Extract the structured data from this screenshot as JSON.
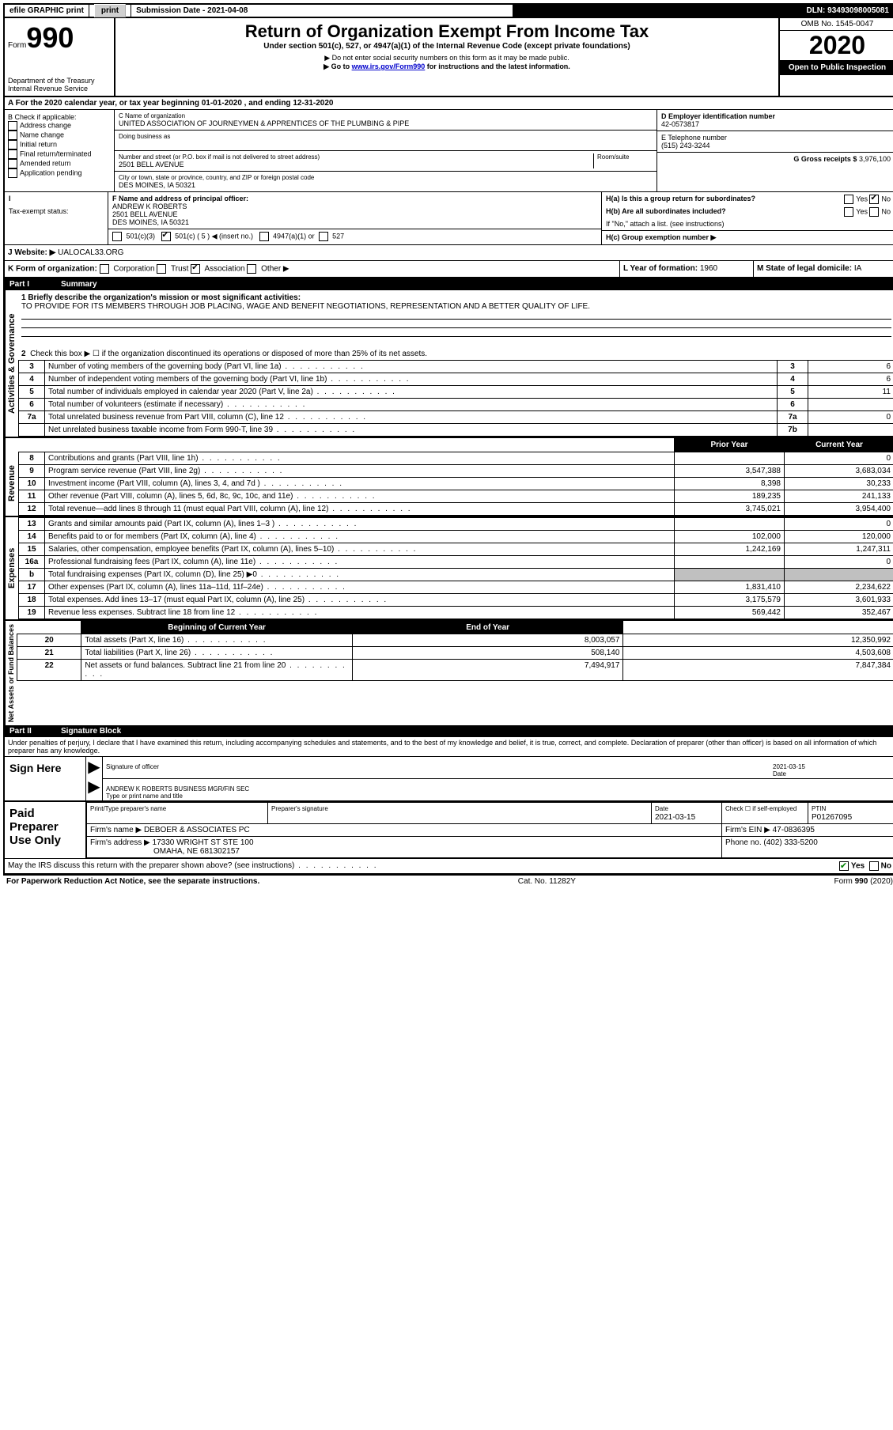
{
  "top": {
    "efile": "efile GRAPHIC print",
    "submission_label": "Submission Date - 2021-04-08",
    "dln": "DLN: 93493098005081"
  },
  "header": {
    "form_label": "Form",
    "form_no": "990",
    "title": "Return of Organization Exempt From Income Tax",
    "subtitle": "Under section 501(c), 527, or 4947(a)(1) of the Internal Revenue Code (except private foundations)",
    "note1": "▶ Do not enter social security numbers on this form as it may be made public.",
    "note2_prefix": "▶ Go to ",
    "note2_link": "www.irs.gov/Form990",
    "note2_suffix": " for instructions and the latest information.",
    "dept": "Department of the Treasury",
    "irs": "Internal Revenue Service",
    "omb": "OMB No. 1545-0047",
    "year": "2020",
    "open": "Open to Public Inspection"
  },
  "lineA": "A For the 2020 calendar year, or tax year beginning 01-01-2020    , and ending 12-31-2020",
  "boxB": {
    "title": "B Check if applicable:",
    "items": [
      "Address change",
      "Name change",
      "Initial return",
      "Final return/terminated",
      "Amended return",
      "Application pending"
    ]
  },
  "boxC": {
    "label_name": "C Name of organization",
    "name": "UNITED ASSOCIATION OF JOURNEYMEN & APPRENTICES OF THE PLUMBING & PIPE",
    "dba_label": "Doing business as",
    "addr_label": "Number and street (or P.O. box if mail is not delivered to street address)",
    "room_label": "Room/suite",
    "addr": "2501 BELL AVENUE",
    "city_label": "City or town, state or province, country, and ZIP or foreign postal code",
    "city": "DES MOINES, IA  50321"
  },
  "boxD": {
    "label": "D Employer identification number",
    "value": "42-0573817"
  },
  "boxE": {
    "label": "E Telephone number",
    "value": "(515) 243-3244"
  },
  "boxG": {
    "label": "G Gross receipts $",
    "value": "3,976,100"
  },
  "boxF": {
    "label": "F  Name and address of principal officer:",
    "name": "ANDREW K ROBERTS",
    "addr1": "2501 BELL AVENUE",
    "addr2": "DES MOINES, IA  50321"
  },
  "boxH": {
    "a": "H(a)  Is this a group return for subordinates?",
    "b": "H(b)  Are all subordinates included?",
    "b_note": "If \"No,\" attach a list. (see instructions)",
    "c": "H(c)  Group exemption number ▶",
    "yes": "Yes",
    "no": "No"
  },
  "taxExempt": {
    "label": "Tax-exempt status:",
    "c3": "501(c)(3)",
    "c_ins": "501(c) ( 5 ) ◀ (insert no.)",
    "a1": "4947(a)(1) or",
    "s527": "527"
  },
  "lineJ": {
    "label": "J    Website: ▶",
    "value": "UALOCAL33.ORG"
  },
  "lineK": {
    "label": "K Form of organization:",
    "corp": "Corporation",
    "trust": "Trust",
    "assoc": "Association",
    "other": "Other ▶"
  },
  "lineL": {
    "label": "L Year of formation:",
    "value": "1960"
  },
  "lineM": {
    "label": "M State of legal domicile:",
    "value": "IA"
  },
  "part1": {
    "tag": "Part I",
    "title": "Summary"
  },
  "mission": {
    "l1": "1  Briefly describe the organization's mission or most significant activities:",
    "text": "TO PROVIDE FOR ITS MEMBERS THROUGH JOB PLACING, WAGE AND BENEFIT NEGOTIATIONS, REPRESENTATION AND A BETTER QUALITY OF LIFE."
  },
  "activities": {
    "l2": "Check this box ▶ ☐  if the organization discontinued its operations or disposed of more than 25% of its net assets.",
    "rows": [
      {
        "n": "3",
        "t": "Number of voting members of the governing body (Part VI, line 1a)",
        "box": "3",
        "v": "6"
      },
      {
        "n": "4",
        "t": "Number of independent voting members of the governing body (Part VI, line 1b)",
        "box": "4",
        "v": "6"
      },
      {
        "n": "5",
        "t": "Total number of individuals employed in calendar year 2020 (Part V, line 2a)",
        "box": "5",
        "v": "11"
      },
      {
        "n": "6",
        "t": "Total number of volunteers (estimate if necessary)",
        "box": "6",
        "v": ""
      },
      {
        "n": "7a",
        "t": "Total unrelated business revenue from Part VIII, column (C), line 12",
        "box": "7a",
        "v": "0"
      },
      {
        "n": "",
        "t": "Net unrelated business taxable income from Form 990-T, line 39",
        "box": "7b",
        "v": ""
      }
    ]
  },
  "colhdr": {
    "prior": "Prior Year",
    "current": "Current Year",
    "boy": "Beginning of Current Year",
    "eoy": "End of Year"
  },
  "revenue": [
    {
      "n": "8",
      "t": "Contributions and grants (Part VIII, line 1h)",
      "p": "",
      "c": "0"
    },
    {
      "n": "9",
      "t": "Program service revenue (Part VIII, line 2g)",
      "p": "3,547,388",
      "c": "3,683,034"
    },
    {
      "n": "10",
      "t": "Investment income (Part VIII, column (A), lines 3, 4, and 7d )",
      "p": "8,398",
      "c": "30,233"
    },
    {
      "n": "11",
      "t": "Other revenue (Part VIII, column (A), lines 5, 6d, 8c, 9c, 10c, and 11e)",
      "p": "189,235",
      "c": "241,133"
    },
    {
      "n": "12",
      "t": "Total revenue—add lines 8 through 11 (must equal Part VIII, column (A), line 12)",
      "p": "3,745,021",
      "c": "3,954,400"
    }
  ],
  "expenses": [
    {
      "n": "13",
      "t": "Grants and similar amounts paid (Part IX, column (A), lines 1–3 )",
      "p": "",
      "c": "0"
    },
    {
      "n": "14",
      "t": "Benefits paid to or for members (Part IX, column (A), line 4)",
      "p": "102,000",
      "c": "120,000"
    },
    {
      "n": "15",
      "t": "Salaries, other compensation, employee benefits (Part IX, column (A), lines 5–10)",
      "p": "1,242,169",
      "c": "1,247,311"
    },
    {
      "n": "16a",
      "t": "Professional fundraising fees (Part IX, column (A), line 11e)",
      "p": "",
      "c": "0"
    },
    {
      "n": "b",
      "t": "Total fundraising expenses (Part IX, column (D), line 25) ▶0",
      "p": "GREY",
      "c": "GREY"
    },
    {
      "n": "17",
      "t": "Other expenses (Part IX, column (A), lines 11a–11d, 11f–24e)",
      "p": "1,831,410",
      "c": "2,234,622"
    },
    {
      "n": "18",
      "t": "Total expenses. Add lines 13–17 (must equal Part IX, column (A), line 25)",
      "p": "3,175,579",
      "c": "3,601,933"
    },
    {
      "n": "19",
      "t": "Revenue less expenses. Subtract line 18 from line 12",
      "p": "569,442",
      "c": "352,467"
    }
  ],
  "netassets": [
    {
      "n": "20",
      "t": "Total assets (Part X, line 16)",
      "p": "8,003,057",
      "c": "12,350,992"
    },
    {
      "n": "21",
      "t": "Total liabilities (Part X, line 26)",
      "p": "508,140",
      "c": "4,503,608"
    },
    {
      "n": "22",
      "t": "Net assets or fund balances. Subtract line 21 from line 20",
      "p": "7,494,917",
      "c": "7,847,384"
    }
  ],
  "sideLabels": {
    "act": "Activities & Governance",
    "rev": "Revenue",
    "exp": "Expenses",
    "na": "Net Assets or Fund Balances"
  },
  "part2": {
    "tag": "Part II",
    "title": "Signature Block"
  },
  "penalties": "Under penalties of perjury, I declare that I have examined this return, including accompanying schedules and statements, and to the best of my knowledge and belief, it is true, correct, and complete. Declaration of preparer (other than officer) is based on all information of which preparer has any knowledge.",
  "sign": {
    "here": "Sign Here",
    "sig_officer": "Signature of officer",
    "date": "Date",
    "date_val": "2021-03-15",
    "name": "ANDREW K ROBERTS BUSINESS MGR/FIN SEC",
    "type_label": "Type or print name and title"
  },
  "paid": {
    "title": "Paid Preparer Use Only",
    "print_label": "Print/Type preparer's name",
    "sig_label": "Preparer's signature",
    "date_label": "Date",
    "date_val": "2021-03-15",
    "check_label": "Check ☐ if self-employed",
    "ptin_label": "PTIN",
    "ptin": "P01267095",
    "firm_label": "Firm's name   ▶",
    "firm": "DEBOER & ASSOCIATES PC",
    "ein_label": "Firm's EIN ▶",
    "ein": "47-0836395",
    "addr_label": "Firm's address ▶",
    "addr1": "17330 WRIGHT ST STE 100",
    "addr2": "OMAHA, NE  681302157",
    "phone_label": "Phone no.",
    "phone": "(402) 333-5200"
  },
  "discuss": "May the IRS discuss this return with the preparer shown above? (see instructions)",
  "footer": {
    "pra": "For Paperwork Reduction Act Notice, see the separate instructions.",
    "cat": "Cat. No. 11282Y",
    "form": "Form 990 (2020)"
  }
}
